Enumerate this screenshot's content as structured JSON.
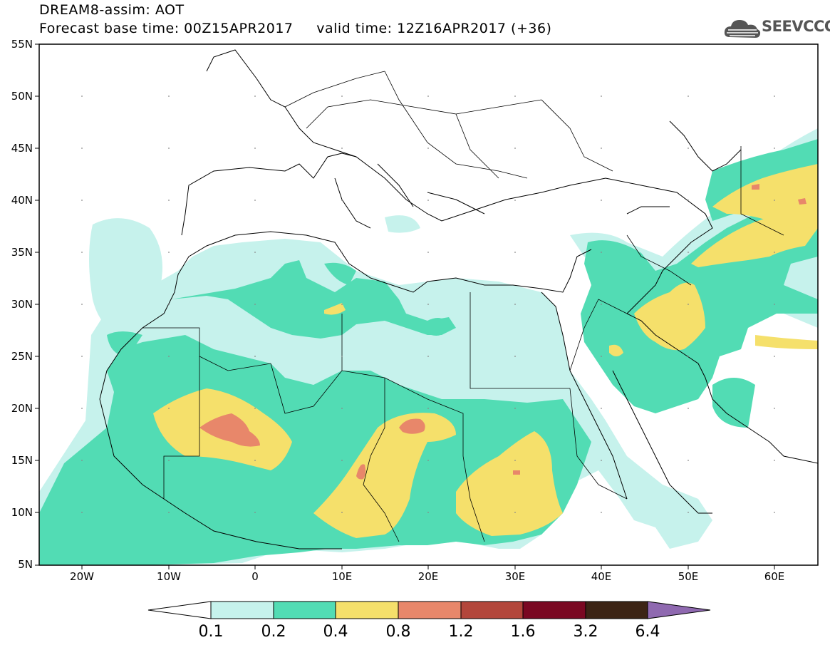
{
  "header": {
    "title_line1": "DREAM8-assim: AOT",
    "title_line2": "Forecast base time: 00Z15APR2017     valid time: 12Z16APR2017 (+36)"
  },
  "logo": {
    "text": "SEEVCCC",
    "icon": "cloud-icon"
  },
  "map": {
    "lat_labels": [
      "55N",
      "50N",
      "45N",
      "40N",
      "35N",
      "30N",
      "25N",
      "20N",
      "15N",
      "10N",
      "5N"
    ],
    "lon_labels": [
      "20W",
      "10W",
      "0",
      "10E",
      "20E",
      "30E",
      "40E",
      "50E",
      "60E"
    ]
  },
  "colorbar": {
    "labels": [
      "0.1",
      "0.2",
      "0.4",
      "0.8",
      "1.2",
      "1.6",
      "3.2",
      "6.4"
    ],
    "colors": [
      "#ffffff",
      "#c6f2ec",
      "#52dcb4",
      "#f5e06b",
      "#e8876a",
      "#b3463b",
      "#7a0822",
      "#3c2415",
      "#8f69b0"
    ]
  },
  "palette": {
    "c01": "#c6f2ec",
    "c02": "#52dcb4",
    "c04": "#f5e06b",
    "c08": "#e8876a"
  }
}
